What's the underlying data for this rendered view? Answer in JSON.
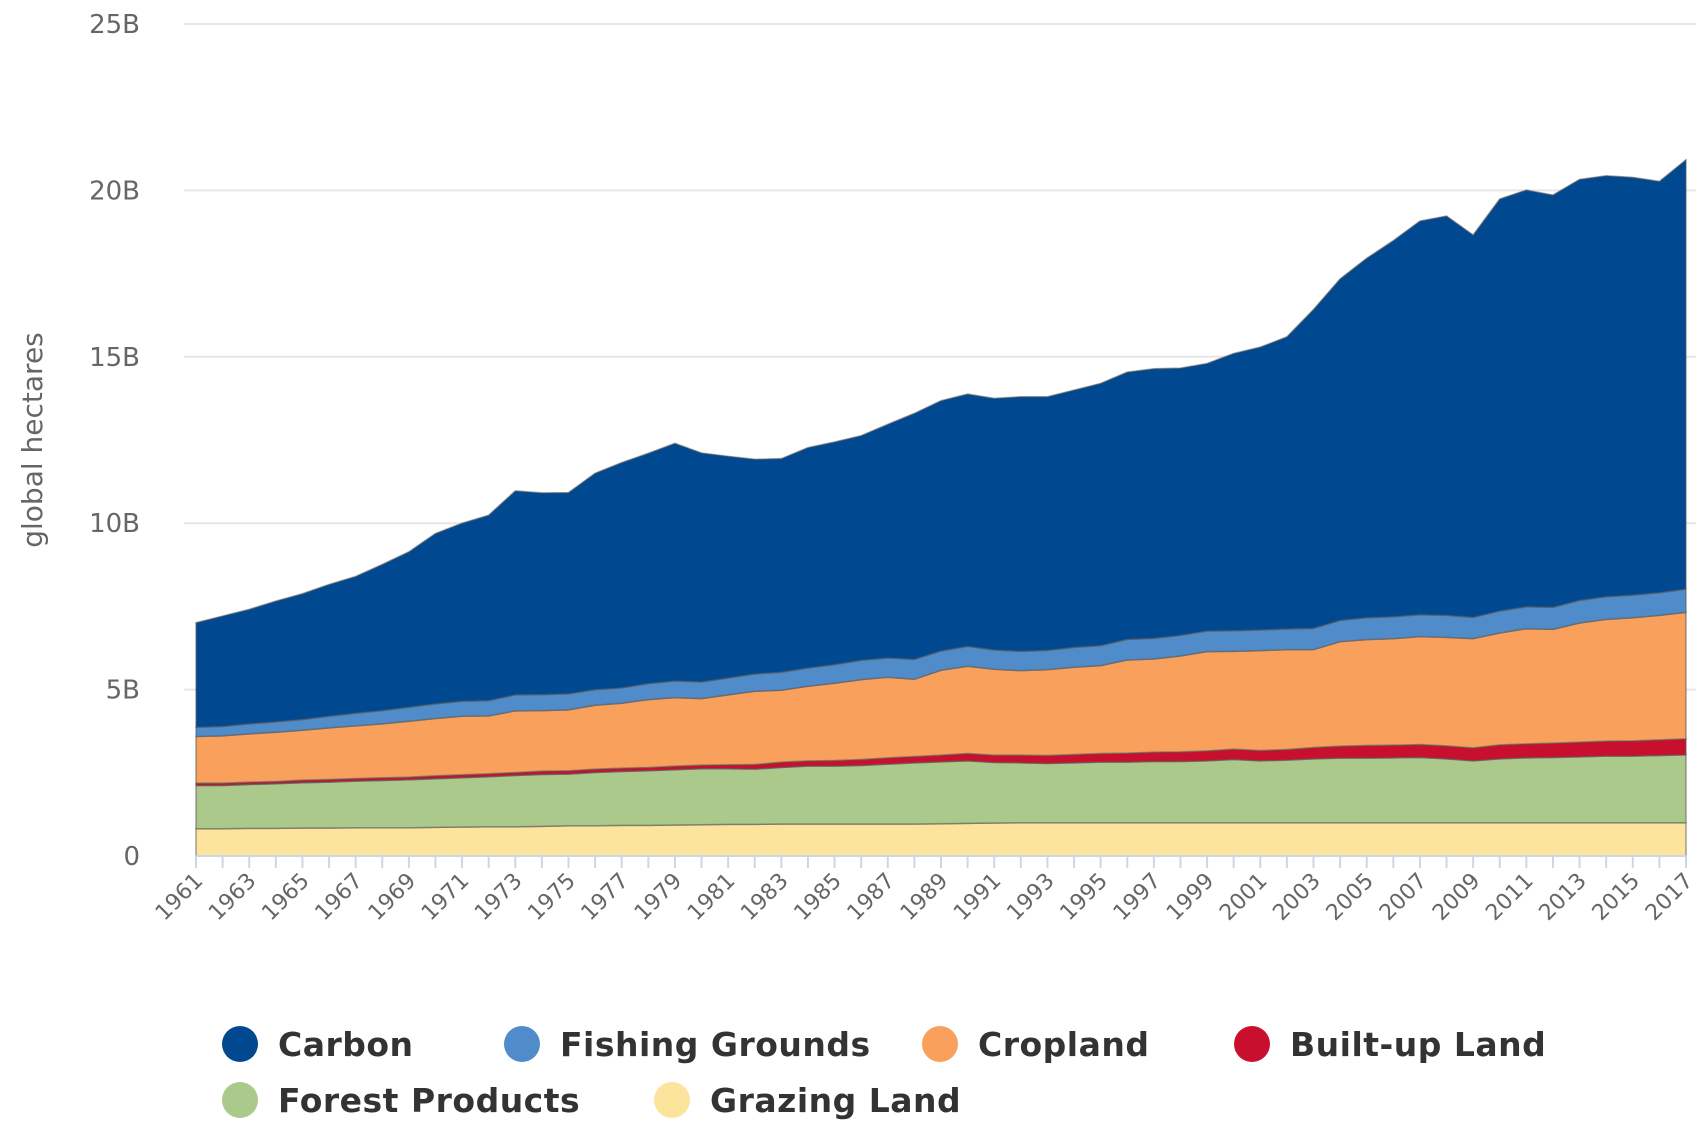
{
  "chart_data": {
    "type": "area",
    "stacked": true,
    "title": "",
    "xlabel": "",
    "ylabel": "global hectares",
    "ylim": [
      0,
      25000000000
    ],
    "yticks": [
      "0",
      "5B",
      "10B",
      "15B",
      "20B",
      "25B"
    ],
    "ytick_values": [
      0,
      5000000000,
      10000000000,
      15000000000,
      20000000000,
      25000000000
    ],
    "grid": true,
    "legend_position": "bottom",
    "x": [
      1961,
      1962,
      1963,
      1964,
      1965,
      1966,
      1967,
      1968,
      1969,
      1970,
      1971,
      1972,
      1973,
      1974,
      1975,
      1976,
      1977,
      1978,
      1979,
      1980,
      1981,
      1982,
      1983,
      1984,
      1985,
      1986,
      1987,
      1988,
      1989,
      1990,
      1991,
      1992,
      1993,
      1994,
      1995,
      1996,
      1997,
      1998,
      1999,
      2000,
      2001,
      2002,
      2003,
      2004,
      2005,
      2006,
      2007,
      2008,
      2009,
      2010,
      2011,
      2012,
      2013,
      2014,
      2015,
      2016,
      2017
    ],
    "xtick_labels": [
      "1961",
      "1963",
      "1965",
      "1967",
      "1969",
      "1971",
      "1973",
      "1975",
      "1977",
      "1979",
      "1981",
      "1983",
      "1985",
      "1987",
      "1989",
      "1991",
      "1993",
      "1995",
      "1997",
      "1999",
      "2001",
      "2003",
      "2005",
      "2007",
      "2009",
      "2011",
      "2013",
      "2015",
      "2017"
    ],
    "series": [
      {
        "name": "Grazing Land",
        "color": "#fde49c",
        "values": [
          0.82,
          0.82,
          0.83,
          0.83,
          0.84,
          0.84,
          0.85,
          0.85,
          0.85,
          0.86,
          0.87,
          0.88,
          0.88,
          0.89,
          0.91,
          0.91,
          0.92,
          0.92,
          0.93,
          0.94,
          0.95,
          0.95,
          0.96,
          0.96,
          0.96,
          0.96,
          0.96,
          0.96,
          0.97,
          0.98,
          0.99,
          1.0,
          1.0,
          1.0,
          1.0,
          1.0,
          1.0,
          1.0,
          1.0,
          1.0,
          1.0,
          1.0,
          1.0,
          1.0,
          1.0,
          1.0,
          1.0,
          1.0,
          1.0,
          1.0,
          1.0,
          1.0,
          1.0,
          1.0,
          1.0,
          1.0,
          1.0
        ]
      },
      {
        "name": "Forest Products",
        "color": "#acc98c",
        "values": [
          1.3,
          1.3,
          1.32,
          1.34,
          1.36,
          1.38,
          1.4,
          1.42,
          1.44,
          1.46,
          1.48,
          1.5,
          1.54,
          1.56,
          1.55,
          1.6,
          1.62,
          1.64,
          1.66,
          1.68,
          1.67,
          1.66,
          1.7,
          1.74,
          1.74,
          1.76,
          1.8,
          1.84,
          1.86,
          1.88,
          1.82,
          1.8,
          1.78,
          1.8,
          1.82,
          1.82,
          1.84,
          1.84,
          1.86,
          1.9,
          1.86,
          1.88,
          1.92,
          1.94,
          1.94,
          1.95,
          1.96,
          1.92,
          1.86,
          1.92,
          1.95,
          1.96,
          1.98,
          2.0,
          2.0,
          2.02,
          2.04
        ]
      },
      {
        "name": "Built-up Land",
        "color": "#c8102e",
        "values": [
          0.07,
          0.07,
          0.07,
          0.07,
          0.08,
          0.08,
          0.08,
          0.08,
          0.08,
          0.09,
          0.09,
          0.09,
          0.09,
          0.1,
          0.1,
          0.1,
          0.1,
          0.1,
          0.11,
          0.11,
          0.12,
          0.14,
          0.16,
          0.16,
          0.17,
          0.18,
          0.19,
          0.19,
          0.2,
          0.22,
          0.22,
          0.23,
          0.24,
          0.25,
          0.26,
          0.27,
          0.28,
          0.29,
          0.3,
          0.31,
          0.31,
          0.32,
          0.34,
          0.36,
          0.38,
          0.38,
          0.39,
          0.39,
          0.39,
          0.42,
          0.42,
          0.43,
          0.44,
          0.45,
          0.46,
          0.47,
          0.48
        ]
      },
      {
        "name": "Cropland",
        "color": "#f9a05c",
        "values": [
          1.4,
          1.42,
          1.45,
          1.48,
          1.5,
          1.55,
          1.58,
          1.62,
          1.68,
          1.72,
          1.76,
          1.74,
          1.85,
          1.82,
          1.83,
          1.92,
          1.95,
          2.04,
          2.06,
          2.0,
          2.1,
          2.2,
          2.16,
          2.24,
          2.32,
          2.4,
          2.42,
          2.32,
          2.55,
          2.62,
          2.58,
          2.54,
          2.58,
          2.62,
          2.64,
          2.8,
          2.8,
          2.88,
          2.98,
          2.94,
          3.0,
          3.0,
          2.94,
          3.14,
          3.18,
          3.2,
          3.24,
          3.26,
          3.28,
          3.36,
          3.46,
          3.42,
          3.58,
          3.66,
          3.7,
          3.74,
          3.8
        ]
      },
      {
        "name": "Fishing Grounds",
        "color": "#4f8cc9",
        "values": [
          0.28,
          0.28,
          0.3,
          0.31,
          0.32,
          0.35,
          0.38,
          0.4,
          0.42,
          0.44,
          0.45,
          0.46,
          0.48,
          0.48,
          0.48,
          0.47,
          0.46,
          0.48,
          0.5,
          0.5,
          0.51,
          0.52,
          0.54,
          0.55,
          0.56,
          0.58,
          0.58,
          0.6,
          0.58,
          0.6,
          0.58,
          0.58,
          0.58,
          0.6,
          0.6,
          0.62,
          0.62,
          0.62,
          0.62,
          0.62,
          0.62,
          0.62,
          0.64,
          0.64,
          0.66,
          0.66,
          0.66,
          0.66,
          0.64,
          0.66,
          0.66,
          0.66,
          0.68,
          0.68,
          0.68,
          0.68,
          0.7
        ]
      },
      {
        "name": "Carbon",
        "color": "#004990",
        "values": [
          3.14,
          3.32,
          3.44,
          3.63,
          3.78,
          3.96,
          4.11,
          4.39,
          4.67,
          5.12,
          5.35,
          5.57,
          6.13,
          6.06,
          6.05,
          6.5,
          6.77,
          6.92,
          7.14,
          6.88,
          6.66,
          6.45,
          6.42,
          6.62,
          6.69,
          6.75,
          7.02,
          7.39,
          7.52,
          7.58,
          7.56,
          7.65,
          7.62,
          7.73,
          7.88,
          8.03,
          8.1,
          8.03,
          8.04,
          8.33,
          8.5,
          8.78,
          9.58,
          10.26,
          10.8,
          11.3,
          11.83,
          12.0,
          11.49,
          12.38,
          12.52,
          12.39,
          12.65,
          12.65,
          12.55,
          12.36,
          12.9
        ]
      }
    ],
    "value_unit_multiplier": 1000000000
  },
  "legend": {
    "items": [
      {
        "name": "Carbon",
        "color": "#004990"
      },
      {
        "name": "Fishing Grounds",
        "color": "#4f8cc9"
      },
      {
        "name": "Cropland",
        "color": "#f9a05c"
      },
      {
        "name": "Built-up Land",
        "color": "#c8102e"
      },
      {
        "name": "Forest Products",
        "color": "#acc98c"
      },
      {
        "name": "Grazing Land",
        "color": "#fde49c"
      }
    ]
  }
}
